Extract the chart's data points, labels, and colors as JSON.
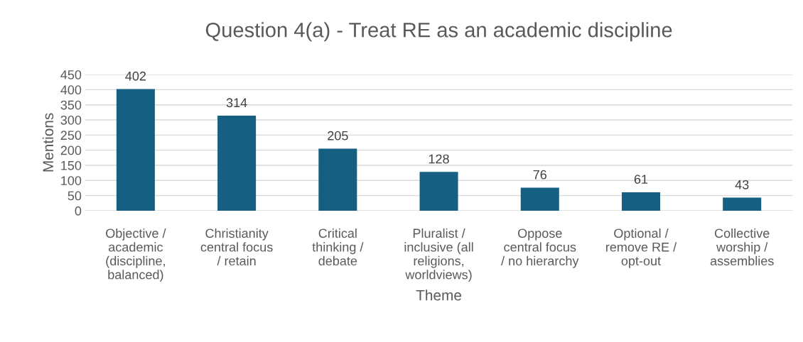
{
  "chart_data": {
    "type": "bar",
    "title": "Question 4(a) - Treat RE as an academic discipline",
    "xlabel": "Theme",
    "ylabel": "Mentions",
    "categories": [
      "Objective /\nacademic\n(discipline,\nbalanced)",
      "Christianity\ncentral focus\n/ retain",
      "Critical\nthinking /\ndebate",
      "Pluralist /\ninclusive (all\nreligions,\nworldviews)",
      "Oppose\ncentral focus\n/ no hierarchy",
      "Optional /\nremove RE /\nopt-out",
      "Collective\nworship /\nassemblies"
    ],
    "values": [
      402,
      314,
      205,
      128,
      76,
      61,
      43
    ],
    "color": "#156082",
    "ylim": [
      0,
      450
    ],
    "yticks": [
      0,
      50,
      100,
      150,
      200,
      250,
      300,
      350,
      400,
      450
    ],
    "grid": "y",
    "data_labels": true
  }
}
